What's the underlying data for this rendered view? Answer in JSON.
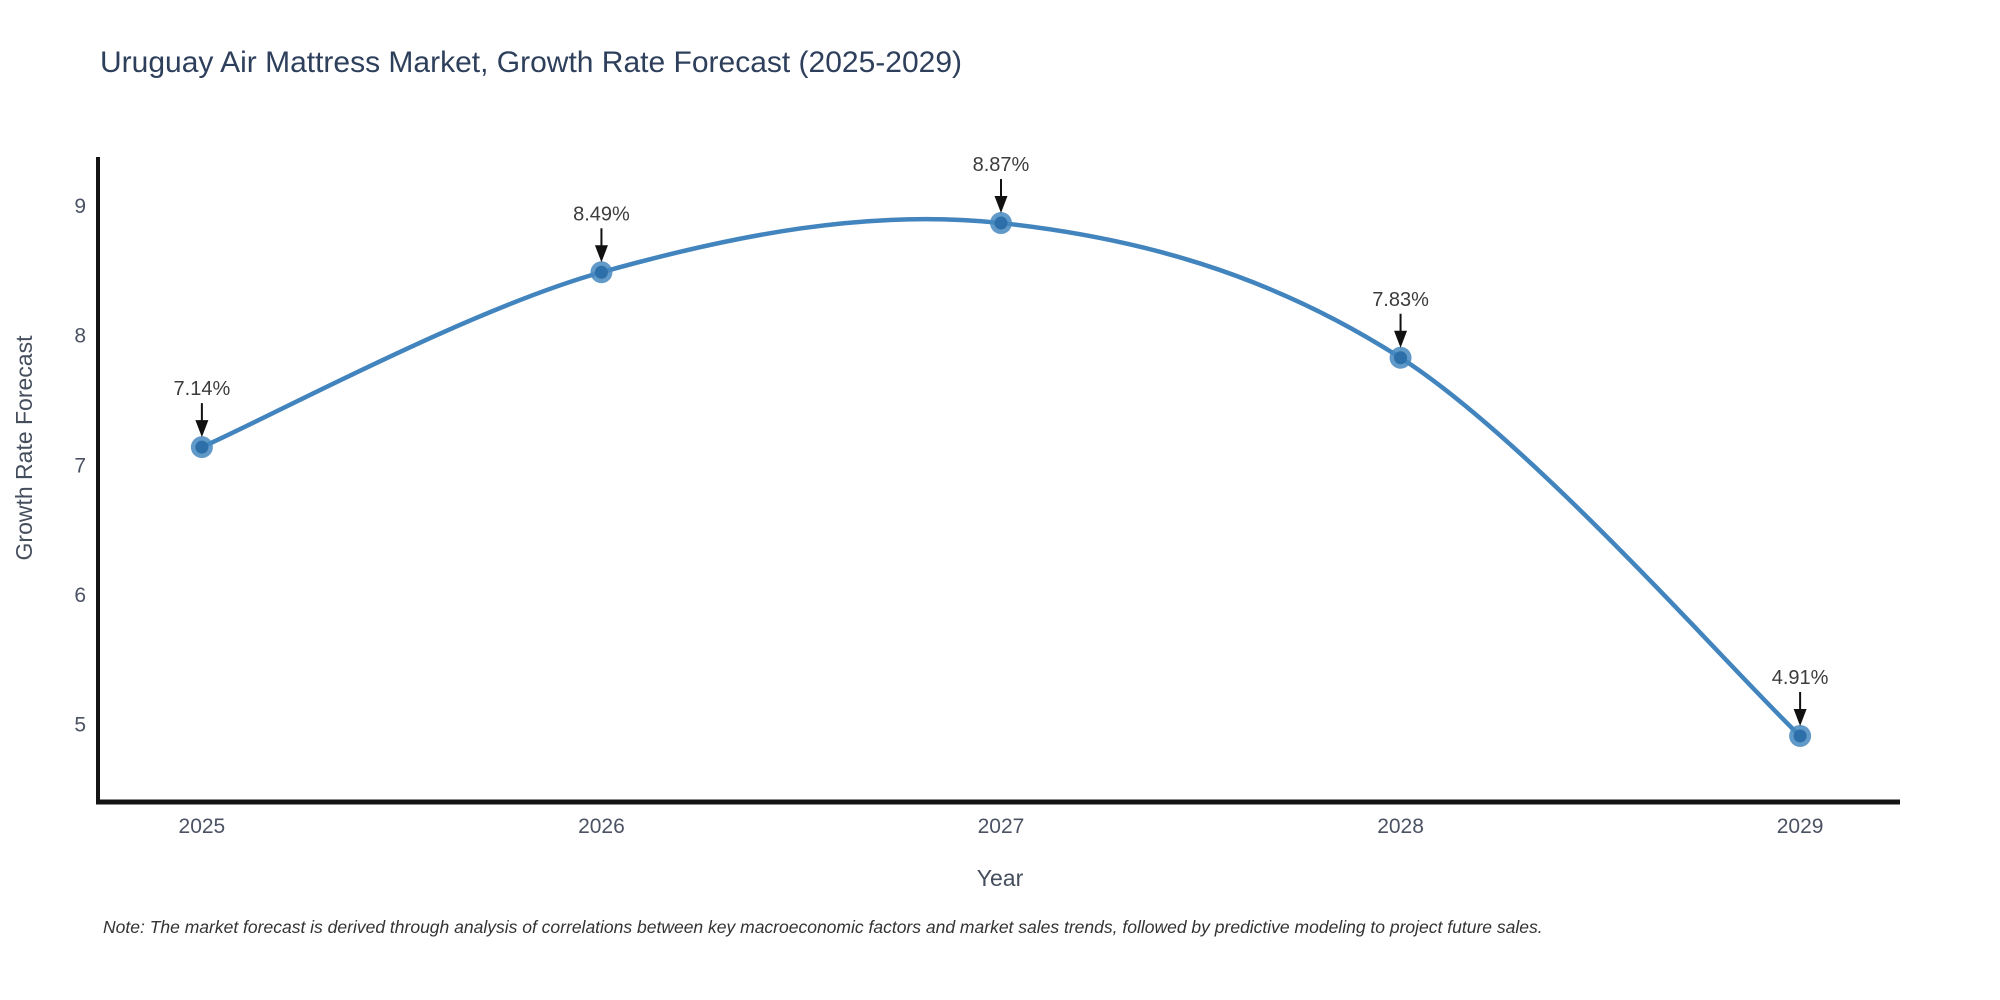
{
  "chart_data": {
    "type": "line",
    "title": "Uruguay Air Mattress Market, Growth Rate Forecast (2025-2029)",
    "xlabel": "Year",
    "ylabel": "Growth Rate Forecast",
    "x": [
      2025,
      2026,
      2027,
      2028,
      2029
    ],
    "y": [
      7.14,
      8.49,
      8.87,
      7.83,
      4.91
    ],
    "point_labels": [
      "7.14%",
      "8.49%",
      "8.87%",
      "7.83%",
      "4.91%"
    ],
    "xticks": [
      2025,
      2026,
      2027,
      2028,
      2029
    ],
    "xtick_labels": [
      "2025",
      "2026",
      "2027",
      "2028",
      "2029"
    ],
    "yticks": [
      5,
      6,
      7,
      8,
      9
    ],
    "ytick_labels": [
      "5",
      "6",
      "7",
      "8",
      "9"
    ],
    "xlim": [
      2024.74,
      2029.25
    ],
    "ylim": [
      4.4,
      9.38
    ],
    "line_shape": "spline",
    "grid": false,
    "legend_position": "none",
    "annotation_style": "value labels with black down arrows onto markers"
  },
  "note": "Note: The market forecast is derived through analysis of correlations between key macroeconomic factors and market sales trends, followed by predictive modeling to project future sales.",
  "colors": {
    "background": "#ffffff",
    "title": "#2e3f5c",
    "line": "#4284bd",
    "marker_outer": "#4588c0",
    "marker_inner": "#2d6fa8",
    "axis_line": "#141414",
    "tick_label": "#4b5263",
    "annotation_text": "#3c3c3c",
    "arrow": "#111111",
    "note_text": "#333333"
  }
}
